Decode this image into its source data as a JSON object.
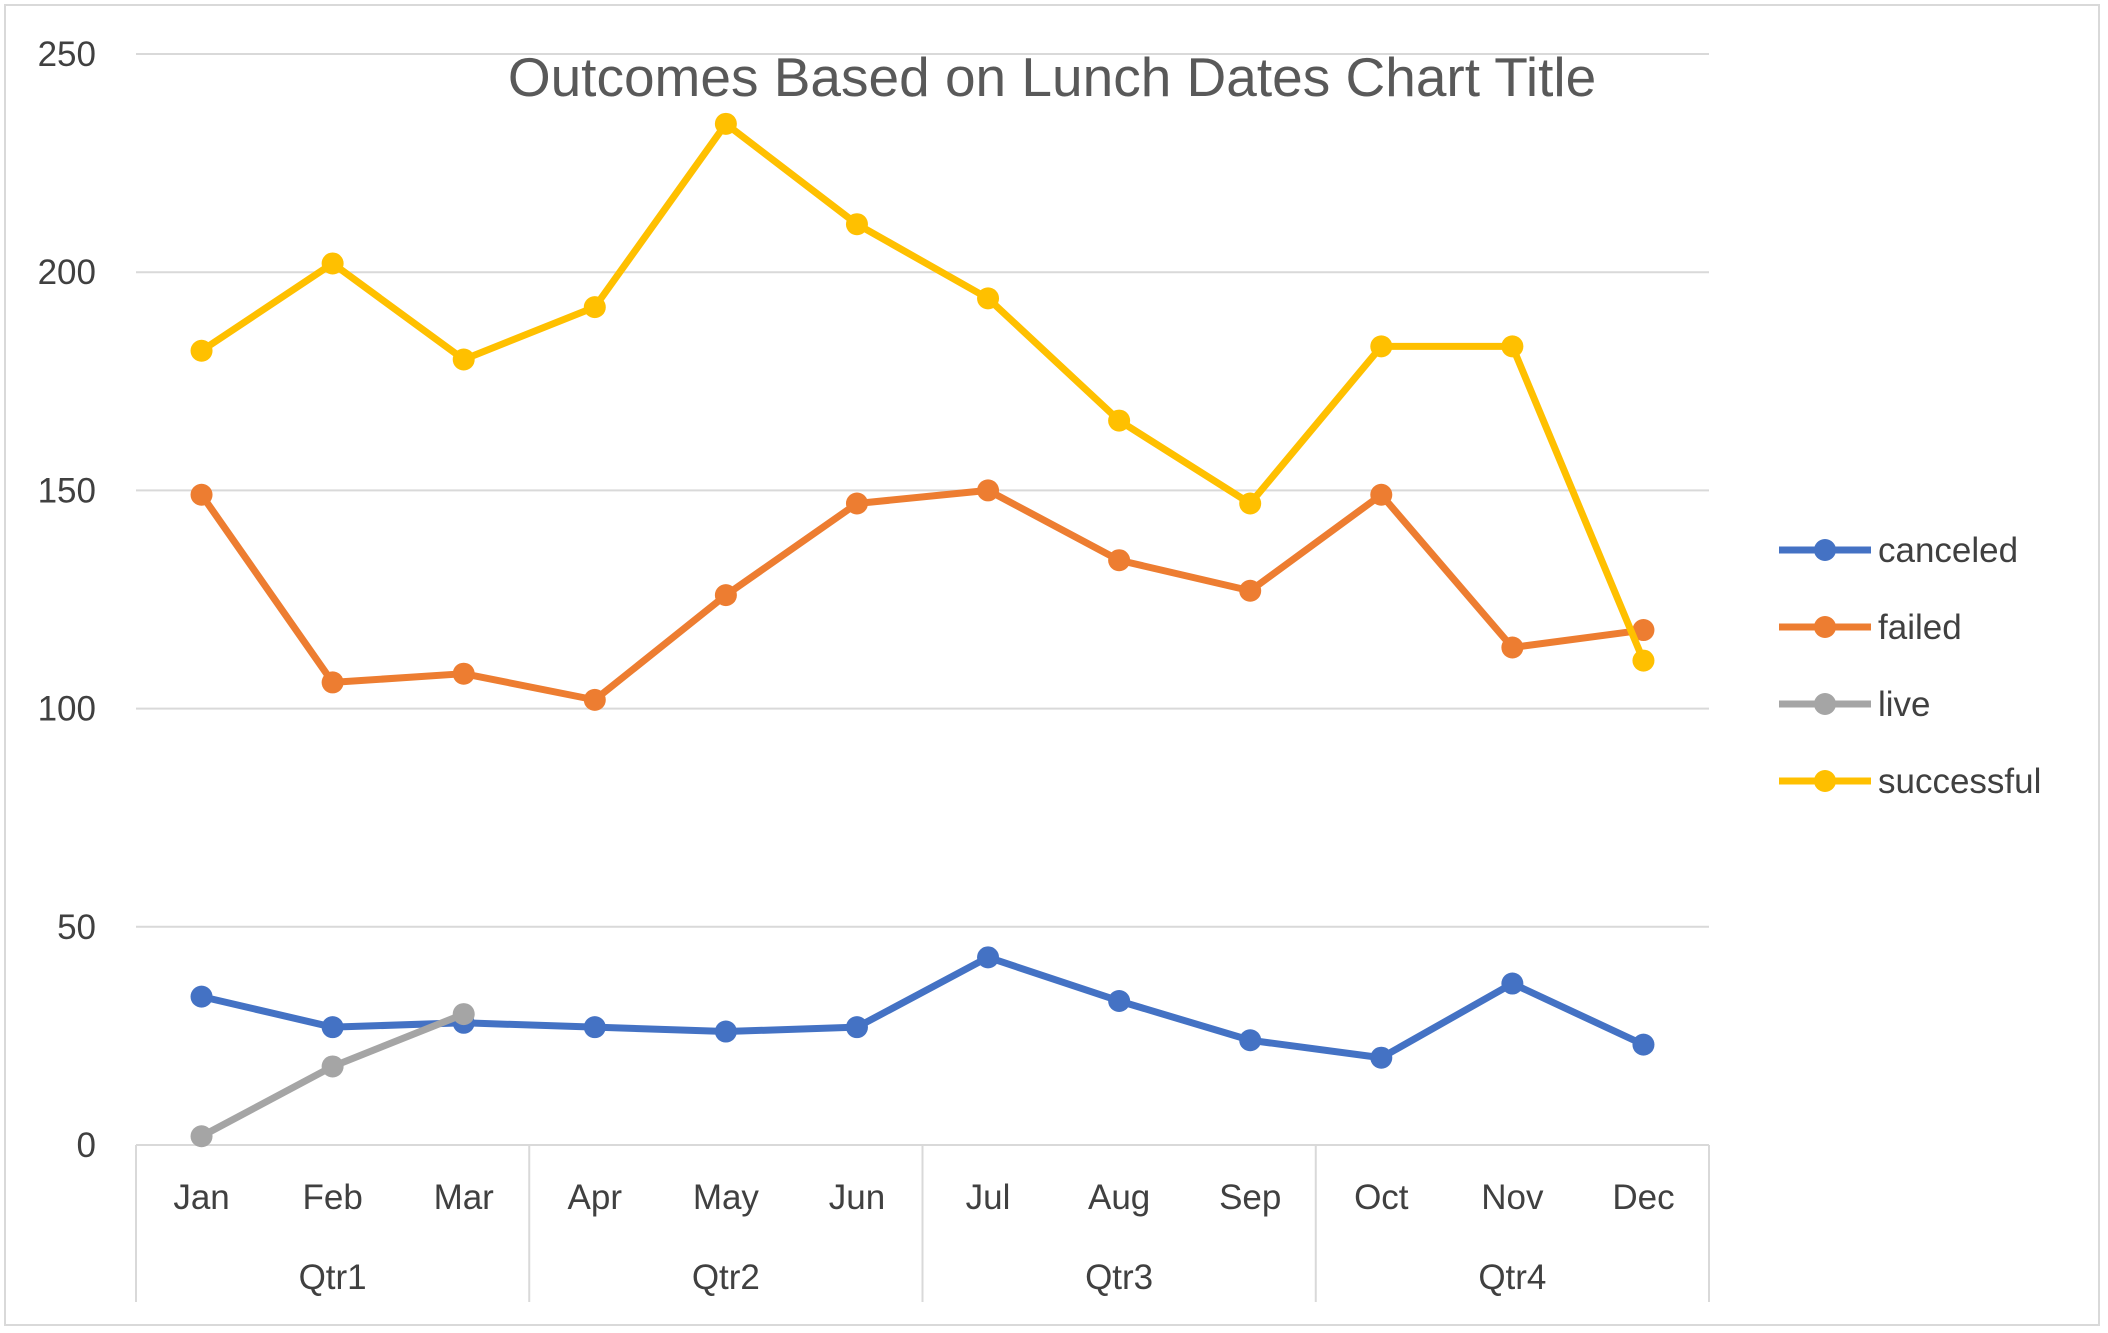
{
  "chart_data": {
    "type": "line",
    "title": "Outcomes Based on Lunch Dates Chart Title",
    "xlabel": "",
    "ylabel": "",
    "categories": [
      "Jan",
      "Feb",
      "Mar",
      "Apr",
      "May",
      "Jun",
      "Jul",
      "Aug",
      "Sep",
      "Oct",
      "Nov",
      "Dec"
    ],
    "category_groups": [
      {
        "label": "Qtr1",
        "categories": [
          "Jan",
          "Feb",
          "Mar"
        ]
      },
      {
        "label": "Qtr2",
        "categories": [
          "Apr",
          "May",
          "Jun"
        ]
      },
      {
        "label": "Qtr3",
        "categories": [
          "Jul",
          "Aug",
          "Sep"
        ]
      },
      {
        "label": "Qtr4",
        "categories": [
          "Oct",
          "Nov",
          "Dec"
        ]
      }
    ],
    "ylim": [
      0,
      250
    ],
    "yticks": [
      "0",
      "50",
      "100",
      "150",
      "200",
      "250"
    ],
    "grid": true,
    "legend_position": "right",
    "series": [
      {
        "name": "canceled",
        "color": "#4472c4",
        "values": [
          34,
          27,
          28,
          27,
          26,
          27,
          43,
          33,
          24,
          20,
          37,
          23
        ]
      },
      {
        "name": "failed",
        "color": "#ed7d31",
        "values": [
          149,
          106,
          108,
          102,
          126,
          147,
          150,
          134,
          127,
          149,
          114,
          118
        ]
      },
      {
        "name": "live",
        "color": "#a5a5a5",
        "values": [
          2,
          18,
          30,
          null,
          null,
          null,
          null,
          null,
          null,
          null,
          null,
          null
        ]
      },
      {
        "name": "successful",
        "color": "#ffc000",
        "values": [
          182,
          202,
          180,
          192,
          234,
          211,
          194,
          166,
          147,
          183,
          183,
          111
        ]
      }
    ]
  }
}
